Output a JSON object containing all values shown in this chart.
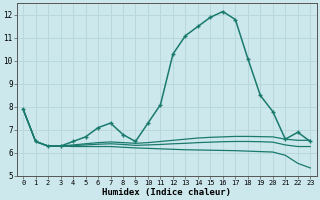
{
  "xlabel": "Humidex (Indice chaleur)",
  "bg_color": "#cce8ec",
  "line_color": "#1a7a6e",
  "grid_color": "#b8d8dc",
  "xlim": [
    -0.5,
    23.5
  ],
  "ylim": [
    5.0,
    12.5
  ],
  "yticks": [
    5,
    6,
    7,
    8,
    9,
    10,
    11,
    12
  ],
  "xticks": [
    0,
    1,
    2,
    3,
    4,
    5,
    6,
    7,
    8,
    9,
    10,
    11,
    12,
    13,
    14,
    15,
    16,
    17,
    18,
    19,
    20,
    21,
    22,
    23
  ],
  "series_main": [
    7.9,
    6.5,
    6.3,
    6.3,
    6.5,
    6.7,
    7.1,
    7.3,
    6.8,
    6.5,
    7.3,
    8.1,
    10.3,
    11.1,
    11.5,
    11.9,
    12.15,
    11.8,
    10.1,
    8.5,
    7.8,
    6.6,
    6.9,
    6.5
  ],
  "series2": [
    7.9,
    6.5,
    6.3,
    6.3,
    6.35,
    6.4,
    6.45,
    6.48,
    6.45,
    6.42,
    6.45,
    6.5,
    6.55,
    6.6,
    6.65,
    6.68,
    6.7,
    6.72,
    6.72,
    6.71,
    6.7,
    6.6,
    6.55,
    6.55
  ],
  "series3": [
    7.9,
    6.5,
    6.3,
    6.3,
    6.32,
    6.35,
    6.38,
    6.4,
    6.37,
    6.33,
    6.35,
    6.37,
    6.4,
    6.42,
    6.45,
    6.47,
    6.49,
    6.5,
    6.5,
    6.49,
    6.47,
    6.35,
    6.28,
    6.28
  ],
  "series4": [
    7.9,
    6.5,
    6.3,
    6.3,
    6.28,
    6.28,
    6.28,
    6.28,
    6.25,
    6.22,
    6.2,
    6.18,
    6.16,
    6.14,
    6.13,
    6.12,
    6.11,
    6.1,
    6.08,
    6.06,
    6.04,
    5.9,
    5.55,
    5.35
  ]
}
